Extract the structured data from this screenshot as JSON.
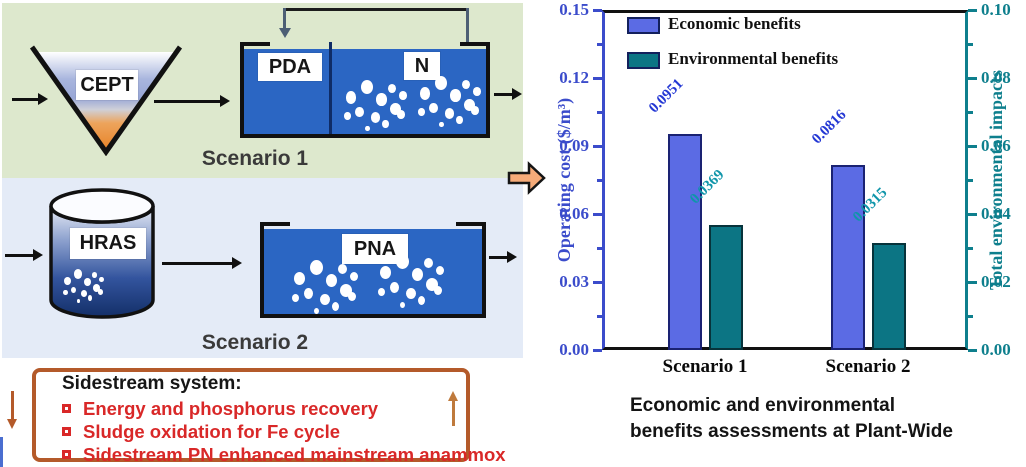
{
  "diagram": {
    "scenario1": {
      "label": "Scenario 1",
      "funnel_label": "CEPT",
      "tank_left_label": "PDA",
      "tank_right_label": "N"
    },
    "scenario2": {
      "label": "Scenario 2",
      "cylinder_label": "HRAS",
      "tank_label": "PNA"
    },
    "sidestream": {
      "title": "Sidestream system:",
      "items": [
        "Energy and phosphorus recovery",
        "Sludge oxidation for Fe cycle",
        "Sidestream  PN enhanced mainstream anammox"
      ],
      "border_color": "#b45a2a",
      "item_color": "#d92828"
    },
    "colors": {
      "scenario1_panel": "#dde8cd",
      "scenario2_panel": "#e4ebf7",
      "tank_fill": "#2b66c3",
      "funnel_tip": "#e8862c",
      "block_arrow_fill": "#f5ab79"
    }
  },
  "chart_data": {
    "type": "bar",
    "categories": [
      "Scenario 1",
      "Scenario 2"
    ],
    "series": [
      {
        "name": "Economic benefits",
        "axis": "left",
        "values": [
          0.0951,
          0.0816
        ],
        "value_labels": [
          "0.0951",
          "0.0816"
        ],
        "color": "#5b6be4",
        "border_color": "#1a2272",
        "label_color": "#2438d4"
      },
      {
        "name": "Environmental benefits",
        "axis": "right",
        "values": [
          0.0369,
          0.0315
        ],
        "value_labels": [
          "0.0369",
          "0.0315"
        ],
        "color": "#0c7584",
        "border_color": "#07333b",
        "label_color": "#0f95aa"
      }
    ],
    "left_axis": {
      "label": "Operating cost ($/m³)",
      "min": 0.0,
      "max": 0.15,
      "major_ticks": [
        0.0,
        0.03,
        0.06,
        0.09,
        0.12,
        0.15
      ],
      "tick_labels": [
        "0.00",
        "0.03",
        "0.06",
        "0.09",
        "0.12",
        "0.15"
      ],
      "color": "#3b4ccb"
    },
    "right_axis": {
      "label": "Total environmental impacts",
      "min": 0.0,
      "max": 0.1,
      "major_ticks": [
        0.0,
        0.02,
        0.04,
        0.06,
        0.08,
        0.1
      ],
      "tick_labels": [
        "0.00",
        "0.02",
        "0.04",
        "0.06",
        "0.08",
        "0.10"
      ],
      "color": "#0e7f8d"
    },
    "legend": [
      "Economic benefits",
      "Environmental benefits"
    ],
    "legend_position": "top-left",
    "grid": false,
    "caption_lines": [
      "Economic and environmental",
      "benefits assessments at Plant-Wide"
    ]
  }
}
